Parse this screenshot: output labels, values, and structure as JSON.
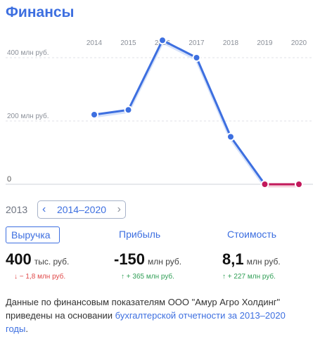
{
  "title": "Финансы",
  "chart_data": {
    "type": "line",
    "categories": [
      "2014",
      "2015",
      "2016",
      "2017",
      "2018",
      "2019",
      "2020"
    ],
    "series": [
      {
        "values": [
          220,
          235,
          455,
          400,
          150,
          0,
          0
        ]
      }
    ],
    "y_ticks": [
      {
        "value": 400,
        "label": "400 млн руб."
      },
      {
        "value": 200,
        "label": "200 млн руб."
      },
      {
        "value": 0,
        "label": "0"
      }
    ],
    "ylim": [
      0,
      500
    ],
    "colors": {
      "line": "#3d6fe0",
      "negative": "#c2185b"
    },
    "grid": true
  },
  "pager": {
    "prev_year": "2013",
    "prev_icon": "chevron-left-icon",
    "range": "2014–2020",
    "next_icon": "chevron-right-icon"
  },
  "metrics": [
    {
      "label": "Выручка",
      "value": "400",
      "unit": "тыс. руб.",
      "change": "↓ − 1,8 млн руб.",
      "trend": "down"
    },
    {
      "label": "Прибыль",
      "value": "-150",
      "unit": "млн руб.",
      "change": "↑ + 365 млн руб.",
      "trend": "up"
    },
    {
      "label": "Стоимость",
      "value": "8,1",
      "unit": "млн руб.",
      "change": "↑ + 227 млн руб.",
      "trend": "up"
    }
  ],
  "note": {
    "text": "Данные по финансовым показателям ООО \"Амур Агро Холдинг\" приведены на основании ",
    "link": "бухгалтерской отчетности за 2013–2020 годы",
    "end": "."
  }
}
